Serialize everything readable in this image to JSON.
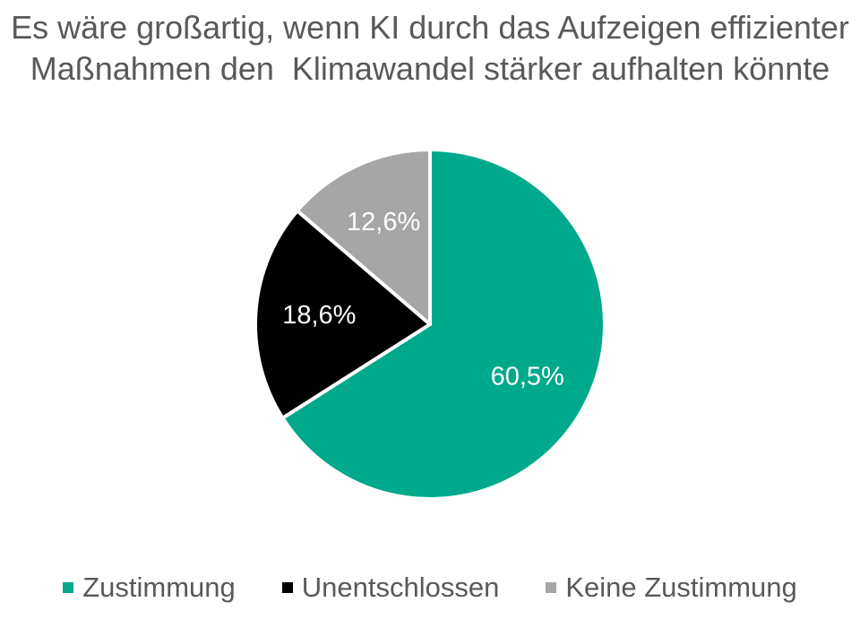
{
  "chart_data": {
    "type": "pie",
    "title_lines": [
      "Es wäre großartig, wenn KI durch das Aufzeigen effizienter",
      "Maßnahmen den  Klimawandel stärker aufhalten könnte"
    ],
    "slices": [
      {
        "name": "Zustimmung",
        "value": 60.5,
        "label": "60,5%",
        "color": "#00A98C",
        "label_color": "#ffffff"
      },
      {
        "name": "Unentschlossen",
        "value": 18.6,
        "label": "18,6%",
        "color": "#000000",
        "label_color": "#ffffff"
      },
      {
        "name": "Keine Zustimmung",
        "value": 12.6,
        "label": "12,6%",
        "color": "#A6A6A6",
        "label_color": "#ffffff"
      }
    ],
    "legend_position": "bottom"
  }
}
